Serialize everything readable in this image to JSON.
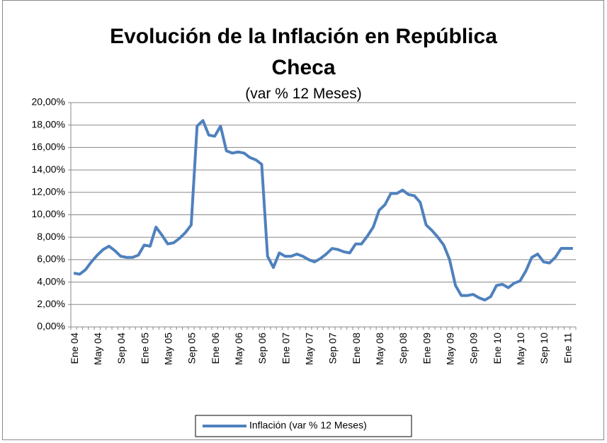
{
  "chart_data": {
    "type": "line",
    "title": "Evolución de la Inflación en República Checa",
    "subtitle": "(var % 12 Meses)",
    "categories": [
      "Ene 04",
      null,
      null,
      null,
      "May 04",
      null,
      null,
      null,
      "Sep 04",
      null,
      null,
      null,
      "Ene 05",
      null,
      null,
      null,
      "May 05",
      null,
      null,
      null,
      "Sep 05",
      null,
      null,
      null,
      "Ene 06",
      null,
      null,
      null,
      "May 06",
      null,
      null,
      null,
      "Sep 06",
      null,
      null,
      null,
      "Ene 07",
      null,
      null,
      null,
      "May 07",
      null,
      null,
      null,
      "Sep 07",
      null,
      null,
      null,
      "Ene 08",
      null,
      null,
      null,
      "May 08",
      null,
      null,
      null,
      "Sep 08",
      null,
      null,
      null,
      "Ene 09",
      null,
      null,
      null,
      "May 09",
      null,
      null,
      null,
      "Sep 09",
      null,
      null,
      null,
      "Ene 10",
      null,
      null,
      null,
      "May 10",
      null,
      null,
      null,
      "Sep 10",
      null,
      null,
      null,
      "Ene 11",
      null
    ],
    "series": [
      {
        "name": "Inflación (var % 12 Meses)",
        "color": "#4f81bd",
        "values": [
          4.8,
          4.7,
          5.1,
          5.8,
          6.4,
          6.9,
          7.2,
          6.8,
          6.3,
          6.2,
          6.2,
          6.4,
          7.3,
          7.2,
          8.9,
          8.2,
          7.4,
          7.5,
          7.9,
          8.4,
          9.1,
          17.9,
          18.4,
          17.1,
          17.0,
          17.9,
          15.7,
          15.5,
          15.6,
          15.5,
          15.1,
          14.9,
          14.5,
          6.3,
          5.3,
          6.6,
          6.3,
          6.3,
          6.5,
          6.3,
          6.0,
          5.8,
          6.1,
          6.5,
          7.0,
          6.9,
          6.7,
          6.6,
          7.4,
          7.4,
          8.1,
          8.9,
          10.4,
          10.9,
          11.9,
          11.9,
          12.2,
          11.8,
          11.7,
          11.1,
          9.1,
          8.6,
          8.0,
          7.3,
          6.0,
          3.7,
          2.8,
          2.8,
          2.9,
          2.6,
          2.4,
          2.7,
          3.7,
          3.8,
          3.5,
          3.9,
          4.1,
          5.0,
          6.2,
          6.5,
          5.8,
          5.7,
          6.2,
          7.0,
          7.0,
          7.0
        ]
      }
    ],
    "ylim": [
      0,
      20
    ],
    "yticks": [
      {
        "value": 0,
        "label": "0,00%"
      },
      {
        "value": 2,
        "label": "2,00%"
      },
      {
        "value": 4,
        "label": "4,00%"
      },
      {
        "value": 6,
        "label": "6,00%"
      },
      {
        "value": 8,
        "label": "8,00%"
      },
      {
        "value": 10,
        "label": "10,00%"
      },
      {
        "value": 12,
        "label": "12,00%"
      },
      {
        "value": 14,
        "label": "14,00%"
      },
      {
        "value": 16,
        "label": "16,00%"
      },
      {
        "value": 18,
        "label": "18,00%"
      },
      {
        "value": 20,
        "label": "20,00%"
      }
    ],
    "grid": true,
    "legend": "bottom"
  }
}
